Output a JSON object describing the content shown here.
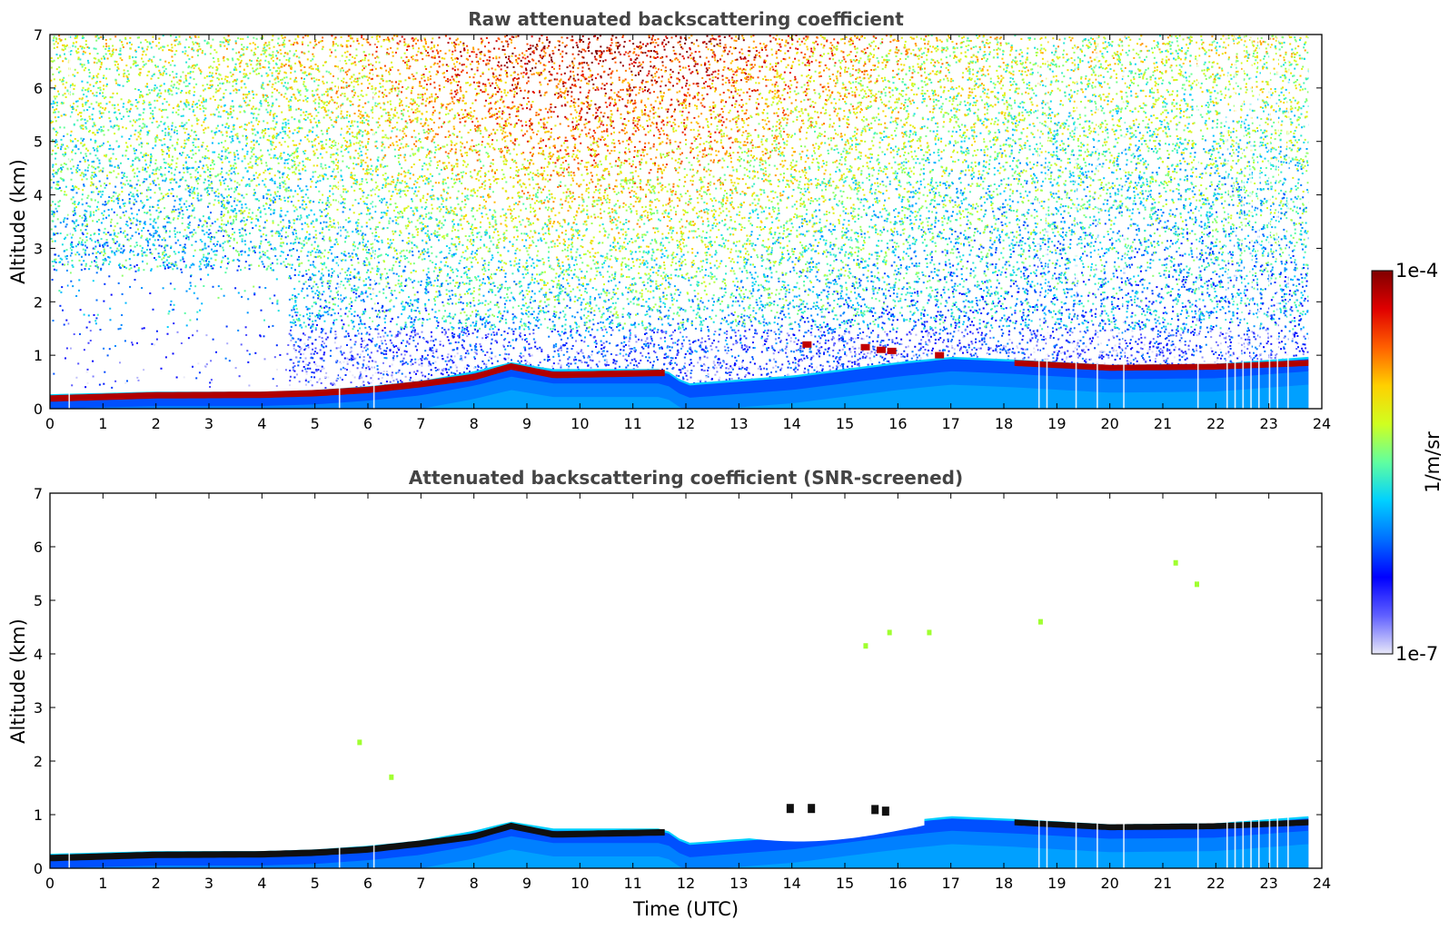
{
  "chart_data": [
    {
      "type": "heatmap",
      "title": "Raw attenuated backscattering coefficient",
      "xlabel": "",
      "ylabel": "Altitude (km)",
      "xlim": [
        0,
        24
      ],
      "ylim": [
        0,
        7
      ],
      "x_ticks": [
        "0",
        "1",
        "2",
        "3",
        "4",
        "5",
        "6",
        "7",
        "8",
        "9",
        "10",
        "11",
        "12",
        "13",
        "14",
        "15",
        "16",
        "17",
        "18",
        "19",
        "20",
        "21",
        "22",
        "23",
        "24"
      ],
      "y_ticks": [
        "0",
        "1",
        "2",
        "3",
        "4",
        "5",
        "6",
        "7"
      ],
      "data_end_hour": 23.75,
      "layer_top_km": [
        {
          "t": 0,
          "h": 0.25
        },
        {
          "t": 2,
          "h": 0.3
        },
        {
          "t": 4,
          "h": 0.3
        },
        {
          "t": 5,
          "h": 0.33
        },
        {
          "t": 6,
          "h": 0.4
        },
        {
          "t": 7,
          "h": 0.5
        },
        {
          "t": 8,
          "h": 0.68
        },
        {
          "t": 8.7,
          "h": 0.85
        },
        {
          "t": 9.5,
          "h": 0.72
        },
        {
          "t": 11.6,
          "h": 0.72
        },
        {
          "t": 12,
          "h": 0.45
        },
        {
          "t": 14,
          "h": 0.6
        },
        {
          "t": 16,
          "h": 0.85
        },
        {
          "t": 17,
          "h": 0.95
        },
        {
          "t": 18.2,
          "h": 0.9
        },
        {
          "t": 20,
          "h": 0.8
        },
        {
          "t": 22,
          "h": 0.82
        },
        {
          "t": 23.75,
          "h": 0.95
        }
      ],
      "cloud_base_km": [
        {
          "t": 0,
          "h": 0.18
        },
        {
          "t": 2,
          "h": 0.24
        },
        {
          "t": 4,
          "h": 0.25
        },
        {
          "t": 5,
          "h": 0.28
        },
        {
          "t": 6,
          "h": 0.34
        },
        {
          "t": 7,
          "h": 0.45
        },
        {
          "t": 8,
          "h": 0.58
        },
        {
          "t": 8.7,
          "h": 0.78
        },
        {
          "t": 9.5,
          "h": 0.62
        },
        {
          "t": 11.6,
          "h": 0.66
        }
      ],
      "cloud_base_late_km": [
        {
          "t": 18.2,
          "h": 0.85
        },
        {
          "t": 20,
          "h": 0.76
        },
        {
          "t": 22,
          "h": 0.78
        },
        {
          "t": 23.75,
          "h": 0.85
        }
      ],
      "gap_hours": [
        0.35,
        5.45,
        6.1,
        18.65,
        18.8,
        19.35,
        19.75,
        20.25,
        21.65,
        22.2,
        22.35,
        22.5,
        22.65,
        22.8,
        23.0,
        23.15,
        23.35
      ]
    },
    {
      "type": "heatmap",
      "title": "Attenuated backscattering coefficient (SNR-screened)",
      "xlabel": "Time (UTC)",
      "ylabel": "Altitude (km)",
      "xlim": [
        0,
        24
      ],
      "ylim": [
        0,
        7
      ],
      "x_ticks": [
        "0",
        "1",
        "2",
        "3",
        "4",
        "5",
        "6",
        "7",
        "8",
        "9",
        "10",
        "11",
        "12",
        "13",
        "14",
        "15",
        "16",
        "17",
        "18",
        "19",
        "20",
        "21",
        "22",
        "23",
        "24"
      ],
      "y_ticks": [
        "0",
        "1",
        "2",
        "3",
        "4",
        "5",
        "6",
        "7"
      ],
      "data_end_hour": 23.75,
      "screened_hole": {
        "t_start": 11.8,
        "t_end": 16.5,
        "h_bottom": 0.5,
        "h_top": 1.1
      },
      "isolated_returns_km": [
        {
          "t": 5.8,
          "h": 2.4
        },
        {
          "t": 6.4,
          "h": 1.75
        },
        {
          "t": 15.35,
          "h": 4.2
        },
        {
          "t": 15.8,
          "h": 4.45
        },
        {
          "t": 16.55,
          "h": 4.45
        },
        {
          "t": 18.65,
          "h": 4.65
        },
        {
          "t": 21.2,
          "h": 5.75
        },
        {
          "t": 21.6,
          "h": 5.35
        }
      ]
    }
  ],
  "colorbar": {
    "label": "1/m/sr",
    "max_label": "1e-4",
    "min_label": "1e-7",
    "colors": [
      "#e8e8f8",
      "#6060ff",
      "#0000ff",
      "#0070ff",
      "#00d0ff",
      "#60ffa0",
      "#d0ff20",
      "#ffd000",
      "#ff6000",
      "#e00000",
      "#800000"
    ]
  }
}
